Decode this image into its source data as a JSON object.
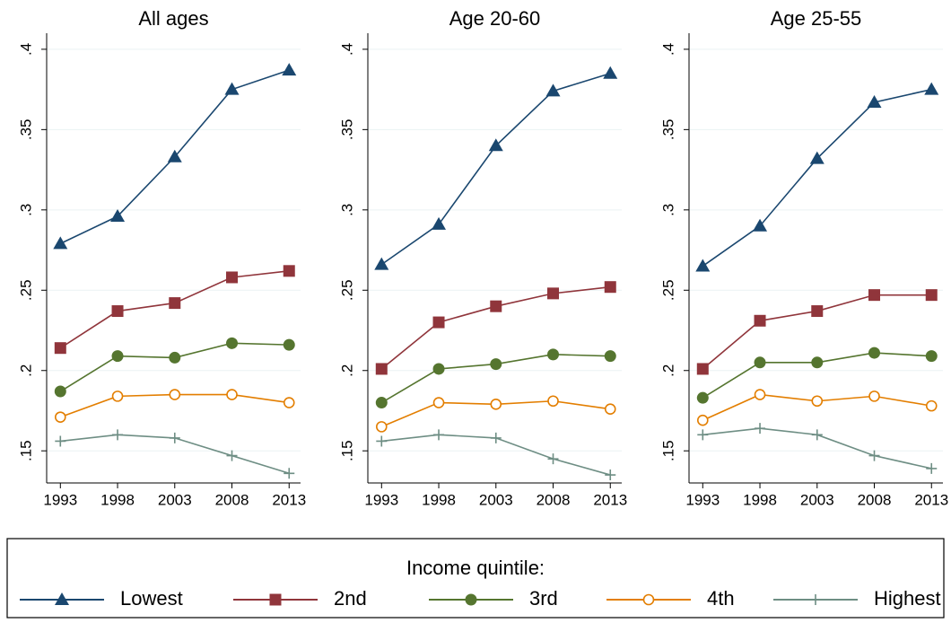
{
  "chart_data": [
    {
      "type": "line",
      "title": "All ages",
      "x": [
        1993,
        1998,
        2003,
        2008,
        2013
      ],
      "xlim": [
        1991.8,
        2014
      ],
      "xticks": [
        1993,
        1998,
        2003,
        2008,
        2013
      ],
      "ylim": [
        0.13,
        0.41
      ],
      "yticks": [
        {
          "value": 0.15,
          "label": ".15"
        },
        {
          "value": 0.2,
          "label": ".2"
        },
        {
          "value": 0.25,
          "label": ".25"
        },
        {
          "value": 0.3,
          "label": ".3"
        },
        {
          "value": 0.35,
          "label": ".35"
        },
        {
          "value": 0.4,
          "label": ".4"
        }
      ],
      "grid": true,
      "series": [
        {
          "name": "Lowest",
          "color": "#1a476f",
          "marker": "triangle",
          "values": [
            0.279,
            0.296,
            0.333,
            0.375,
            0.387
          ]
        },
        {
          "name": "2nd",
          "color": "#90353b",
          "marker": "square",
          "values": [
            0.214,
            0.237,
            0.242,
            0.258,
            0.262
          ]
        },
        {
          "name": "3rd",
          "color": "#55752f",
          "marker": "circle",
          "values": [
            0.187,
            0.209,
            0.208,
            0.217,
            0.216
          ]
        },
        {
          "name": "4th",
          "color": "#e37e00",
          "marker": "hollow-circle",
          "values": [
            0.171,
            0.184,
            0.185,
            0.185,
            0.18
          ]
        },
        {
          "name": "Highest",
          "color": "#6e8e84",
          "marker": "plus",
          "values": [
            0.156,
            0.16,
            0.158,
            0.147,
            0.136
          ]
        }
      ]
    },
    {
      "type": "line",
      "title": "Age 20-60",
      "x": [
        1993,
        1998,
        2003,
        2008,
        2013
      ],
      "xlim": [
        1991.8,
        2014
      ],
      "xticks": [
        1993,
        1998,
        2003,
        2008,
        2013
      ],
      "ylim": [
        0.13,
        0.41
      ],
      "yticks": [
        {
          "value": 0.15,
          "label": ".15"
        },
        {
          "value": 0.2,
          "label": ".2"
        },
        {
          "value": 0.25,
          "label": ".25"
        },
        {
          "value": 0.3,
          "label": ".3"
        },
        {
          "value": 0.35,
          "label": ".35"
        },
        {
          "value": 0.4,
          "label": ".4"
        }
      ],
      "grid": true,
      "series": [
        {
          "name": "Lowest",
          "color": "#1a476f",
          "marker": "triangle",
          "values": [
            0.266,
            0.291,
            0.34,
            0.374,
            0.385
          ]
        },
        {
          "name": "2nd",
          "color": "#90353b",
          "marker": "square",
          "values": [
            0.201,
            0.23,
            0.24,
            0.248,
            0.252
          ]
        },
        {
          "name": "3rd",
          "color": "#55752f",
          "marker": "circle",
          "values": [
            0.18,
            0.201,
            0.204,
            0.21,
            0.209
          ]
        },
        {
          "name": "4th",
          "color": "#e37e00",
          "marker": "hollow-circle",
          "values": [
            0.165,
            0.18,
            0.179,
            0.181,
            0.176
          ]
        },
        {
          "name": "Highest",
          "color": "#6e8e84",
          "marker": "plus",
          "values": [
            0.156,
            0.16,
            0.158,
            0.145,
            0.135
          ]
        }
      ]
    },
    {
      "type": "line",
      "title": "Age 25-55",
      "x": [
        1993,
        1998,
        2003,
        2008,
        2013
      ],
      "xlim": [
        1991.8,
        2014
      ],
      "xticks": [
        1993,
        1998,
        2003,
        2008,
        2013
      ],
      "ylim": [
        0.13,
        0.41
      ],
      "yticks": [
        {
          "value": 0.15,
          "label": ".15"
        },
        {
          "value": 0.2,
          "label": ".2"
        },
        {
          "value": 0.25,
          "label": ".25"
        },
        {
          "value": 0.3,
          "label": ".3"
        },
        {
          "value": 0.35,
          "label": ".35"
        },
        {
          "value": 0.4,
          "label": ".4"
        }
      ],
      "grid": true,
      "series": [
        {
          "name": "Lowest",
          "color": "#1a476f",
          "marker": "triangle",
          "values": [
            0.265,
            0.29,
            0.332,
            0.367,
            0.375
          ]
        },
        {
          "name": "2nd",
          "color": "#90353b",
          "marker": "square",
          "values": [
            0.201,
            0.231,
            0.237,
            0.247,
            0.247
          ]
        },
        {
          "name": "3rd",
          "color": "#55752f",
          "marker": "circle",
          "values": [
            0.183,
            0.205,
            0.205,
            0.211,
            0.209
          ]
        },
        {
          "name": "4th",
          "color": "#e37e00",
          "marker": "hollow-circle",
          "values": [
            0.169,
            0.185,
            0.181,
            0.184,
            0.178
          ]
        },
        {
          "name": "Highest",
          "color": "#6e8e84",
          "marker": "plus",
          "values": [
            0.16,
            0.164,
            0.16,
            0.147,
            0.139
          ]
        }
      ]
    }
  ],
  "legend": {
    "title": "Income quintile:"
  }
}
